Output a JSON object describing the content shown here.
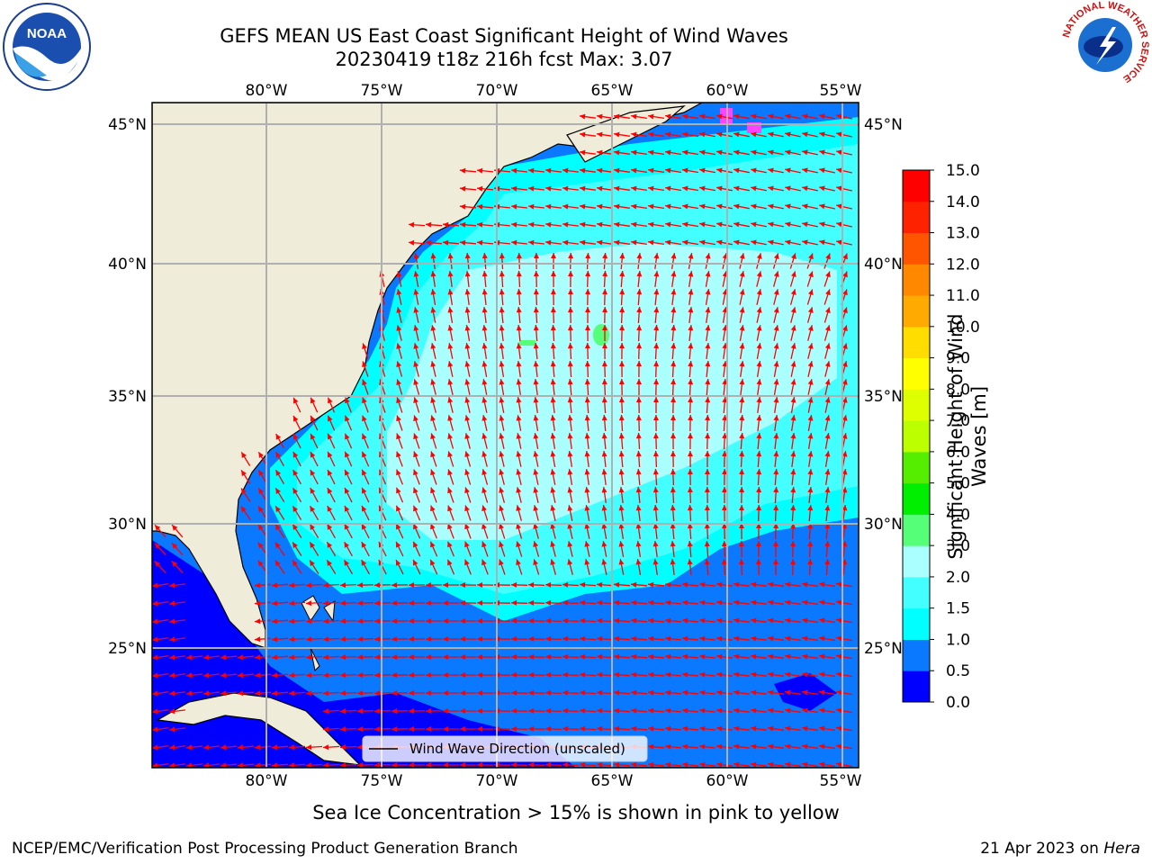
{
  "title_line1": "GEFS MEAN US East Coast Significant Height of Wind Waves",
  "title_line2": "20230419 t18z 216h fcst   Max: 3.07",
  "lon_labels": [
    "80°W",
    "75°W",
    "70°W",
    "65°W",
    "60°W",
    "55°W"
  ],
  "lat_labels": [
    "45°N",
    "40°N",
    "35°N",
    "30°N",
    "25°N"
  ],
  "legend_label": "Wind Wave Direction (unscaled)",
  "colorbar": {
    "label_line1": "Significant Height of Wind",
    "label_line2": "Waves [m]",
    "ticks": [
      "0.0",
      "0.5",
      "1.0",
      "1.5",
      "2.0",
      "3.0",
      "4.0",
      "5.0",
      "6.0",
      "7.0",
      "8.0",
      "9.0",
      "10.0",
      "11.0",
      "12.0",
      "13.0",
      "14.0",
      "15.0"
    ],
    "colors": [
      "#0000ff",
      "#0a78ff",
      "#00ffff",
      "#44ffff",
      "#aaffff",
      "#55ff77",
      "#00ee00",
      "#55ee00",
      "#bbff00",
      "#ddff00",
      "#ffff00",
      "#ffdd00",
      "#ffaa00",
      "#ff8800",
      "#ff5500",
      "#ff2200",
      "#ff0000"
    ]
  },
  "sea_ice_note": "Sea Ice Concentration > 15% is shown in pink to yellow",
  "footer_left": "NCEP/EMC/Verification Post Processing Product Generation Branch",
  "footer_date": "21 Apr 2023 on ",
  "footer_machine": "Hera",
  "logos": {
    "left": "NOAA",
    "right_ring": "NATIONAL WEATHER SERVICE"
  },
  "colors": {
    "land": "#efedda",
    "arrow": "#ff0000",
    "grid": "#b0b0b0"
  }
}
